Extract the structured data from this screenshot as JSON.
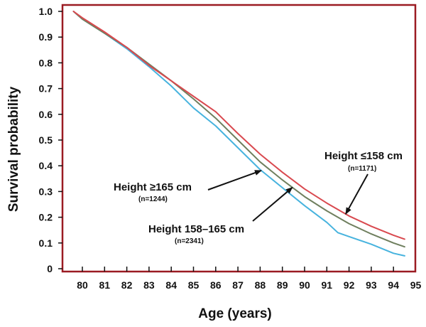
{
  "chart_data": {
    "type": "line",
    "title": "",
    "xlabel": "Age (years)",
    "ylabel": "Survival probability",
    "xlim": [
      79.4,
      95.0
    ],
    "ylim": [
      0,
      1.0
    ],
    "x_ticks": [
      "80",
      "81",
      "82",
      "83",
      "84",
      "85",
      "86",
      "87",
      "88",
      "89",
      "90",
      "91",
      "92",
      "93",
      "94",
      "95"
    ],
    "y_ticks": [
      "0",
      "0.1",
      "0.2",
      "0.3",
      "0.4",
      "0.5",
      "0.6",
      "0.7",
      "0.8",
      "0.9",
      "1.0"
    ],
    "grid": false,
    "legend": "none (series labelled by annotations with arrows)",
    "series": [
      {
        "name": "Height ≤158 cm",
        "n_label": "(n=1171)",
        "color": "#d9494f",
        "points": [
          [
            79.6,
            1.0
          ],
          [
            80,
            0.975
          ],
          [
            81,
            0.92
          ],
          [
            82,
            0.86
          ],
          [
            83,
            0.79
          ],
          [
            84,
            0.73
          ],
          [
            85,
            0.67
          ],
          [
            86,
            0.61
          ],
          [
            87,
            0.525
          ],
          [
            88,
            0.445
          ],
          [
            89,
            0.375
          ],
          [
            90,
            0.31
          ],
          [
            91,
            0.255
          ],
          [
            92,
            0.205
          ],
          [
            93,
            0.165
          ],
          [
            94,
            0.13
          ],
          [
            94.5,
            0.115
          ]
        ]
      },
      {
        "name": "Height 158–165 cm",
        "n_label": "(n=2341)",
        "color": "#6f7f5e",
        "points": [
          [
            79.6,
            1.0
          ],
          [
            80,
            0.97
          ],
          [
            81,
            0.915
          ],
          [
            82,
            0.86
          ],
          [
            83,
            0.795
          ],
          [
            84,
            0.73
          ],
          [
            85,
            0.66
          ],
          [
            86,
            0.585
          ],
          [
            87,
            0.5
          ],
          [
            88,
            0.415
          ],
          [
            89,
            0.345
          ],
          [
            90,
            0.28
          ],
          [
            91,
            0.225
          ],
          [
            92,
            0.175
          ],
          [
            93,
            0.135
          ],
          [
            94,
            0.1
          ],
          [
            94.5,
            0.085
          ]
        ]
      },
      {
        "name": "Height ≥165 cm",
        "n_label": "(n=1244)",
        "color": "#47b3de",
        "points": [
          [
            79.6,
            1.0
          ],
          [
            80,
            0.97
          ],
          [
            81,
            0.915
          ],
          [
            82,
            0.855
          ],
          [
            83,
            0.785
          ],
          [
            84,
            0.71
          ],
          [
            85,
            0.625
          ],
          [
            86,
            0.555
          ],
          [
            87,
            0.47
          ],
          [
            88,
            0.385
          ],
          [
            89,
            0.315
          ],
          [
            90,
            0.245
          ],
          [
            91,
            0.18
          ],
          [
            91.5,
            0.14
          ],
          [
            92,
            0.125
          ],
          [
            93,
            0.095
          ],
          [
            94,
            0.06
          ],
          [
            94.5,
            0.05
          ]
        ]
      }
    ],
    "annotations": [
      {
        "series": 0,
        "text": "Height ≤158 cm",
        "sub": "(n=1171)"
      },
      {
        "series": 2,
        "text": "Height ≥165 cm",
        "sub": "(n=1244)"
      },
      {
        "series": 1,
        "text": "Height 158–165 cm",
        "sub": "(n=2341)"
      }
    ]
  },
  "colors": {
    "frame": "#9b1b22",
    "text": "#111111",
    "arrow": "#111111"
  }
}
